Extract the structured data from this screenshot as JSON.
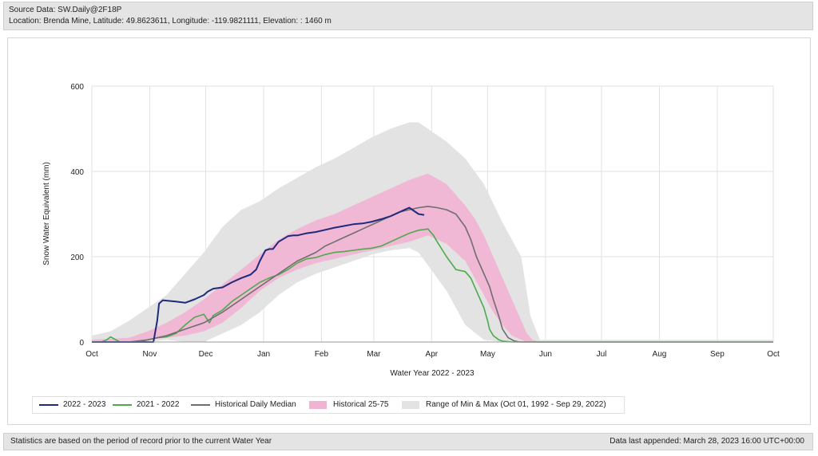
{
  "header": {
    "source": "Source Data: SW.Daily@2F18P",
    "location": "Location: Brenda Mine, Latitude: 49.8623611, Longitude: -119.9821111, Elevation: : 1460 m"
  },
  "footer": {
    "left": "Statistics are based on the period of record prior to the current Water Year",
    "right": "Data last appended: March 28, 2023 16:00 UTC+00:00"
  },
  "colors": {
    "current": "#1f2a7a",
    "previous": "#4caa4c",
    "median": "#6e6e6e",
    "band": "#f2b3d3",
    "range": "#e3e3e3",
    "grid": "#e2e2e2"
  },
  "chart_data": {
    "type": "line",
    "xlabel": "Water Year 2022 - 2023",
    "ylabel": "Snow Water Equivalent (mm)",
    "ylim": [
      0,
      600
    ],
    "yticks": [
      0,
      200,
      400,
      600
    ],
    "xlim": [
      0,
      365
    ],
    "x_units": "days since Oct 01",
    "xticks": [
      {
        "label": "Oct",
        "x": 0
      },
      {
        "label": "Nov",
        "x": 31
      },
      {
        "label": "Dec",
        "x": 61
      },
      {
        "label": "Jan",
        "x": 92
      },
      {
        "label": "Feb",
        "x": 123
      },
      {
        "label": "Mar",
        "x": 151
      },
      {
        "label": "Apr",
        "x": 182
      },
      {
        "label": "May",
        "x": 212
      },
      {
        "label": "Jun",
        "x": 243
      },
      {
        "label": "Jul",
        "x": 273
      },
      {
        "label": "Aug",
        "x": 304
      },
      {
        "label": "Sep",
        "x": 335
      },
      {
        "label": "Oct",
        "x": 365
      }
    ],
    "grid": true,
    "legend_position": "bottom",
    "legend": [
      {
        "label": "2022 - 2023",
        "kind": "line",
        "color": "#1f2a7a"
      },
      {
        "label": "2021 - 2022",
        "kind": "line",
        "color": "#4caa4c"
      },
      {
        "label": "Historical Daily Median",
        "kind": "line",
        "color": "#6e6e6e"
      },
      {
        "label": "Historical 25-75",
        "kind": "band",
        "color": "#f2b3d3"
      },
      {
        "label": "Range of Min & Max (Oct 01, 1992 - Sep 29, 2022)",
        "kind": "band",
        "color": "#e3e3e3"
      }
    ],
    "range_band": {
      "x": [
        0,
        10,
        20,
        30,
        40,
        50,
        60,
        70,
        80,
        90,
        100,
        110,
        120,
        130,
        140,
        150,
        160,
        170,
        175,
        180,
        190,
        200,
        210,
        220,
        230,
        235,
        240,
        250,
        300,
        365
      ],
      "low": [
        0,
        0,
        0,
        0,
        5,
        0,
        0,
        20,
        40,
        70,
        110,
        140,
        160,
        175,
        190,
        205,
        215,
        220,
        210,
        180,
        120,
        40,
        5,
        0,
        0,
        0,
        0,
        0,
        0,
        0
      ],
      "high": [
        15,
        25,
        50,
        80,
        110,
        160,
        210,
        270,
        310,
        330,
        360,
        385,
        410,
        430,
        455,
        480,
        500,
        515,
        515,
        500,
        470,
        430,
        370,
        280,
        200,
        60,
        5,
        5,
        5,
        5
      ]
    },
    "iqr_band": {
      "x": [
        0,
        20,
        30,
        40,
        50,
        60,
        70,
        80,
        90,
        100,
        110,
        120,
        130,
        140,
        150,
        160,
        170,
        180,
        190,
        200,
        205,
        210,
        215,
        220,
        225,
        230,
        233,
        236,
        240,
        365
      ],
      "low": [
        0,
        0,
        5,
        10,
        15,
        25,
        45,
        80,
        120,
        150,
        170,
        185,
        195,
        205,
        215,
        225,
        235,
        250,
        230,
        190,
        150,
        110,
        70,
        40,
        15,
        5,
        0,
        0,
        0,
        0
      ],
      "high": [
        5,
        10,
        25,
        45,
        70,
        100,
        135,
        170,
        205,
        240,
        265,
        285,
        300,
        320,
        340,
        360,
        380,
        395,
        370,
        320,
        290,
        250,
        200,
        150,
        100,
        50,
        20,
        5,
        0,
        0
      ]
    },
    "series": [
      {
        "name": "2022 - 2023",
        "x": [
          0,
          33,
          35,
          36,
          38,
          40,
          45,
          50,
          55,
          60,
          62,
          65,
          70,
          75,
          80,
          85,
          88,
          90,
          93,
          95,
          97,
          100,
          105,
          108,
          110,
          115,
          120,
          125,
          130,
          135,
          140,
          145,
          150,
          155,
          160,
          165,
          170,
          175,
          178
        ],
        "y": [
          0,
          0,
          50,
          90,
          98,
          97,
          95,
          92,
          100,
          110,
          118,
          125,
          128,
          140,
          150,
          158,
          170,
          190,
          215,
          218,
          218,
          235,
          248,
          250,
          250,
          255,
          258,
          263,
          268,
          272,
          276,
          278,
          282,
          288,
          295,
          305,
          315,
          300,
          298
        ]
      },
      {
        "name": "2021 - 2022",
        "x": [
          0,
          5,
          8,
          10,
          15,
          20,
          25,
          30,
          35,
          40,
          45,
          50,
          55,
          60,
          63,
          65,
          70,
          75,
          80,
          85,
          90,
          95,
          100,
          105,
          110,
          115,
          120,
          125,
          130,
          135,
          140,
          145,
          150,
          155,
          160,
          165,
          170,
          175,
          180,
          183,
          185,
          190,
          195,
          200,
          203,
          206,
          210,
          212,
          213,
          215,
          218,
          220,
          225,
          230,
          240,
          300,
          365
        ],
        "y": [
          0,
          0,
          5,
          12,
          0,
          0,
          0,
          5,
          10,
          12,
          20,
          40,
          58,
          65,
          45,
          62,
          75,
          95,
          110,
          125,
          140,
          150,
          158,
          170,
          185,
          195,
          198,
          205,
          210,
          212,
          215,
          218,
          220,
          225,
          235,
          245,
          255,
          262,
          265,
          250,
          235,
          200,
          170,
          165,
          150,
          120,
          80,
          50,
          30,
          15,
          5,
          2,
          0,
          0,
          0,
          0,
          0
        ]
      },
      {
        "name": "Historical Daily Median",
        "x": [
          0,
          20,
          30,
          40,
          50,
          60,
          70,
          80,
          90,
          100,
          105,
          110,
          115,
          120,
          125,
          130,
          135,
          140,
          145,
          150,
          155,
          160,
          165,
          170,
          175,
          180,
          185,
          190,
          195,
          200,
          203,
          206,
          210,
          213,
          215,
          218,
          220,
          223,
          226,
          228,
          230,
          240,
          365
        ],
        "y": [
          0,
          0,
          5,
          15,
          30,
          45,
          70,
          100,
          130,
          160,
          175,
          190,
          200,
          210,
          225,
          235,
          245,
          255,
          265,
          275,
          285,
          295,
          305,
          310,
          315,
          318,
          315,
          310,
          300,
          270,
          240,
          200,
          160,
          130,
          100,
          60,
          30,
          10,
          3,
          1,
          0,
          0,
          0
        ]
      }
    ]
  }
}
